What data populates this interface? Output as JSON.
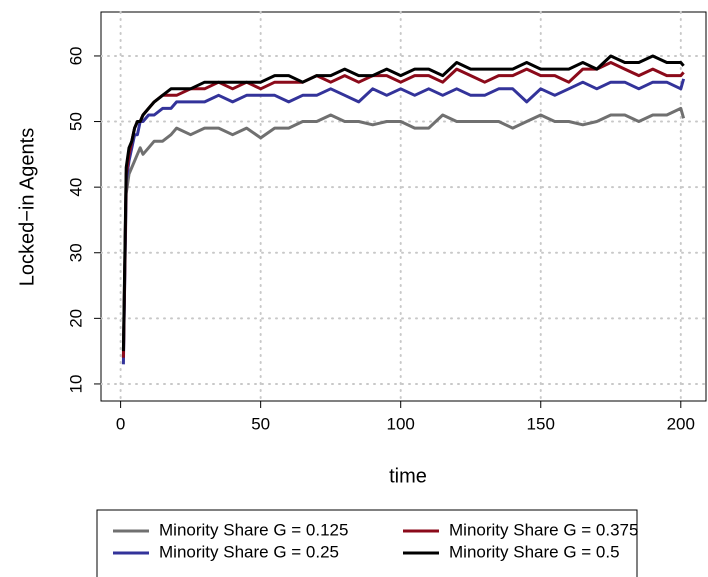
{
  "chart_data": {
    "type": "line",
    "x_label": "time",
    "y_label": "Locked−in Agents",
    "x": [
      1,
      2,
      3,
      4,
      5,
      6,
      7,
      8,
      10,
      12,
      15,
      18,
      20,
      25,
      30,
      35,
      40,
      45,
      50,
      55,
      60,
      65,
      70,
      75,
      80,
      85,
      90,
      95,
      100,
      105,
      110,
      115,
      120,
      125,
      130,
      135,
      140,
      145,
      150,
      155,
      160,
      165,
      170,
      175,
      180,
      185,
      190,
      195,
      200,
      201
    ],
    "series": [
      {
        "name": "Minority Share G = 0.125",
        "color": "#707070",
        "values": [
          14,
          39,
          42,
          43,
          44,
          45,
          46,
          45,
          46,
          47,
          47,
          48,
          49,
          48,
          49,
          49,
          48,
          49,
          47.5,
          49,
          49,
          50,
          50,
          51,
          50,
          50,
          49.5,
          50,
          50,
          49,
          49,
          51,
          50,
          50,
          50,
          50,
          49,
          50,
          51,
          50,
          50,
          49.5,
          50,
          51,
          51,
          50,
          51,
          51,
          52,
          50.5
        ]
      },
      {
        "name": "Minority Share G = 0.25",
        "color": "#33339a",
        "values": [
          13,
          41,
          44,
          46,
          48,
          48,
          50,
          50,
          51,
          51,
          52,
          52,
          53,
          53,
          53,
          54,
          53,
          54,
          54,
          54,
          53,
          54,
          54,
          55,
          54,
          53,
          55,
          54,
          55,
          54,
          55,
          54,
          55,
          54,
          54,
          55,
          55,
          53,
          55,
          54,
          55,
          56,
          55,
          56,
          56,
          55,
          56,
          56,
          55,
          56.5
        ]
      },
      {
        "name": "Minority Share G = 0.375",
        "color": "#8b0a1a",
        "values": [
          14,
          42,
          45,
          47,
          49,
          50,
          50,
          51,
          52,
          53,
          54,
          54,
          54,
          55,
          55,
          56,
          55,
          56,
          55,
          56,
          56,
          56,
          57,
          56,
          57,
          56,
          57,
          57,
          56,
          57,
          57,
          56,
          58,
          57,
          56,
          57,
          57,
          58,
          57,
          57,
          56,
          58,
          58,
          59,
          58,
          57,
          58,
          57,
          57,
          57.5
        ]
      },
      {
        "name": "Minority Share G = 0.5",
        "color": "#000000",
        "values": [
          15,
          43,
          46,
          47,
          49,
          50,
          50,
          51,
          52,
          53,
          54,
          55,
          55,
          55,
          56,
          56,
          56,
          56,
          56,
          57,
          57,
          56,
          57,
          57,
          58,
          57,
          57,
          58,
          57,
          58,
          58,
          57,
          59,
          58,
          58,
          58,
          58,
          59,
          58,
          58,
          58,
          59,
          58,
          60,
          59,
          59,
          60,
          59,
          59,
          58.5
        ]
      }
    ],
    "xlim": [
      -7,
      209
    ],
    "ylim": [
      7.4,
      66.7
    ],
    "xticks": [
      0,
      50,
      100,
      150,
      200
    ],
    "yticks": [
      10,
      20,
      30,
      40,
      50,
      60
    ],
    "grid": true,
    "legend": "bottom"
  }
}
